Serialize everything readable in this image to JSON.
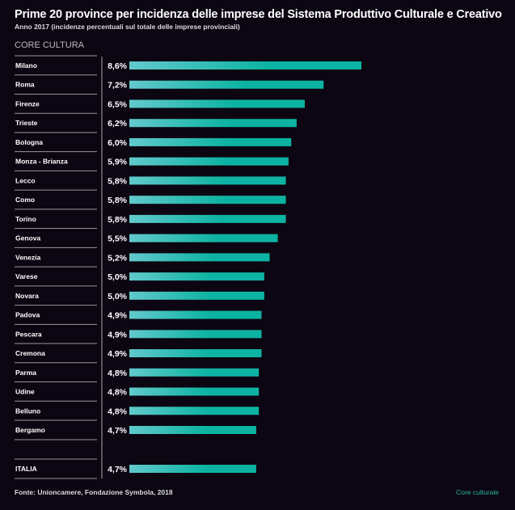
{
  "chart_data": {
    "type": "bar",
    "orientation": "horizontal",
    "title": "Prime 20 province per incidenza delle imprese del Sistema Produttivo Culturale e Creativo",
    "subtitle": "Anno 2017 (incidenze percentuali sul totale delle imprese provinciali)",
    "section": "CORE CULTURA",
    "categories": [
      "Milano",
      "Roma",
      "Firenze",
      "Trieste",
      "Bologna",
      "Monza - Brianza",
      "Lecco",
      "Como",
      "Torino",
      "Genova",
      "Venezia",
      "Varese",
      "Novara",
      "Padova",
      "Pescara",
      "Cremona",
      "Parma",
      "Udine",
      "Belluno",
      "Bergamo"
    ],
    "values": [
      8.6,
      7.2,
      6.5,
      6.2,
      6.0,
      5.9,
      5.8,
      5.8,
      5.8,
      5.5,
      5.2,
      5.0,
      5.0,
      4.9,
      4.9,
      4.9,
      4.8,
      4.8,
      4.8,
      4.7
    ],
    "value_labels": [
      "8,6%",
      "7,2%",
      "6,5%",
      "6,2%",
      "6,0%",
      "5,9%",
      "5,8%",
      "5,8%",
      "5,8%",
      "5,5%",
      "5,2%",
      "5,0%",
      "5,0%",
      "4,9%",
      "4,9%",
      "4,9%",
      "4,8%",
      "4,8%",
      "4,8%",
      "4,7%"
    ],
    "total": {
      "category": "ITALIA",
      "value": 4.7,
      "value_label": "4,7%"
    },
    "unit": "%",
    "colors": {
      "bar_start": "#62c9cc",
      "bar_end": "#0db3a2",
      "background": "#0b0612"
    }
  },
  "source": "Fonte: Unioncamere, Fondazione Symbola, 2018",
  "footer_tag": "Core culturale"
}
